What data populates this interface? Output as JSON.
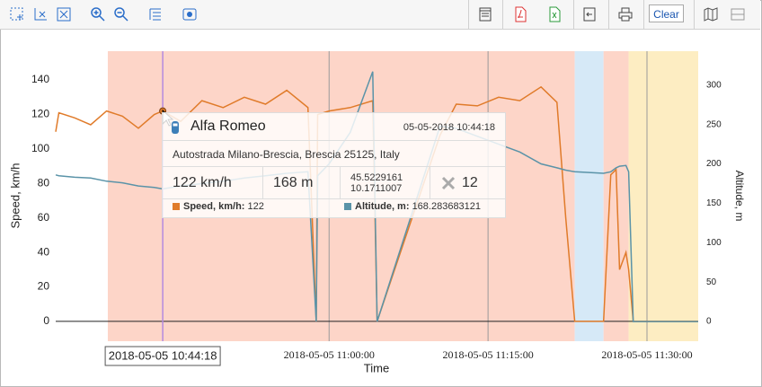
{
  "toolbar": {
    "clear": "Clear"
  },
  "chart_data": {
    "type": "line",
    "x": [
      "2018-05-05 10:34:12",
      "2018-05-05 10:34:30",
      "2018-05-05 10:36:00",
      "2018-05-05 10:37:30",
      "2018-05-05 10:39:00",
      "2018-05-05 10:40:30",
      "2018-05-05 10:42:00",
      "2018-05-05 10:43:30",
      "2018-05-05 10:44:18",
      "2018-05-05 10:46:00",
      "2018-05-05 10:48:00",
      "2018-05-05 10:50:00",
      "2018-05-05 10:52:00",
      "2018-05-05 10:54:00",
      "2018-05-05 10:56:00",
      "2018-05-05 10:58:00",
      "2018-05-05 10:58:47",
      "2018-05-05 10:58:55",
      "2018-05-05 11:00:00",
      "2018-05-05 11:02:00",
      "2018-05-05 11:04:07",
      "2018-05-05 11:04:32",
      "2018-05-05 11:10:28",
      "2018-05-05 11:12:00",
      "2018-05-05 11:14:00",
      "2018-05-05 11:16:00",
      "2018-05-05 11:18:00",
      "2018-05-05 11:20:00",
      "2018-05-05 11:21:30",
      "2018-05-05 11:22:20",
      "2018-05-05 11:23:11",
      "2018-05-05 11:25:54",
      "2018-05-05 11:26:35",
      "2018-05-05 11:27:05",
      "2018-05-05 11:27:25",
      "2018-05-05 11:28:01",
      "2018-05-05 11:28:16",
      "2018-05-05 11:28:42",
      "2018-05-05 11:34:50"
    ],
    "series": [
      {
        "color": "#e07b2a",
        "values": [
          110,
          121,
          118,
          114,
          122,
          119,
          112,
          120,
          122,
          116,
          128,
          124,
          130,
          126,
          134,
          124,
          0,
          120,
          122,
          124,
          128,
          0,
          108,
          126,
          125,
          130,
          128,
          136,
          127,
          60,
          0,
          0,
          85,
          88,
          30,
          40,
          30,
          0,
          0
        ]
      },
      {
        "color": "#5a93a8",
        "axis": "y2",
        "values": [
          186,
          185,
          183,
          182,
          178,
          176,
          172,
          170,
          168.283683121,
          172,
          175,
          178,
          182,
          185,
          188,
          190,
          0,
          185,
          200,
          240,
          317,
          0,
          248,
          245,
          235,
          225,
          215,
          200,
          195,
          192,
          190,
          188,
          190,
          195,
          197,
          198,
          190,
          0,
          0
        ]
      }
    ],
    "xlabel": "Time",
    "ylabel": "Speed, km/h",
    "y2label": "Altitude, m",
    "xlim": [
      "2018-05-05 10:34:12",
      "2018-05-05 11:34:50"
    ],
    "xticks": [
      "2018-05-05 11:00:00",
      "2018-05-05 11:15:00",
      "2018-05-05 11:30:00"
    ],
    "ylim": [
      -11.5,
      156.7
    ],
    "yticks": [
      0,
      20,
      40,
      60,
      80,
      100,
      120,
      140
    ],
    "y2lim": [
      -25,
      343
    ],
    "y2ticks": [
      0,
      50,
      100,
      150,
      200,
      250,
      300
    ],
    "bands": [
      {
        "start": "2018-05-05 10:39:07",
        "end": "2018-05-05 11:23:11",
        "color": "#fdd5c8"
      },
      {
        "start": "2018-05-05 11:23:11",
        "end": "2018-05-05 11:25:54",
        "color": "#d6e9f7"
      },
      {
        "start": "2018-05-05 11:25:54",
        "end": "2018-05-05 11:28:16",
        "color": "#fdd5c8"
      },
      {
        "start": "2018-05-05 11:28:16",
        "end": "2018-05-05 11:34:50",
        "color": "#fdedc2"
      }
    ],
    "cursor": "2018-05-05 10:44:18"
  },
  "tooltip": {
    "vehicle": "Alfa Romeo",
    "datetime": "05-05-2018 10:44:18",
    "address": "Autostrada Milano-Brescia, Brescia 25125, Italy",
    "speed": "122 km/h",
    "altitude": "168 m",
    "latitude": "45.5229161",
    "longitude": "10.1711007",
    "satellites": "12",
    "speed_label": "Speed, km/h:",
    "speed_value": "122",
    "altitude_label": "Altitude, m:",
    "altitude_value": "168.283683121"
  }
}
